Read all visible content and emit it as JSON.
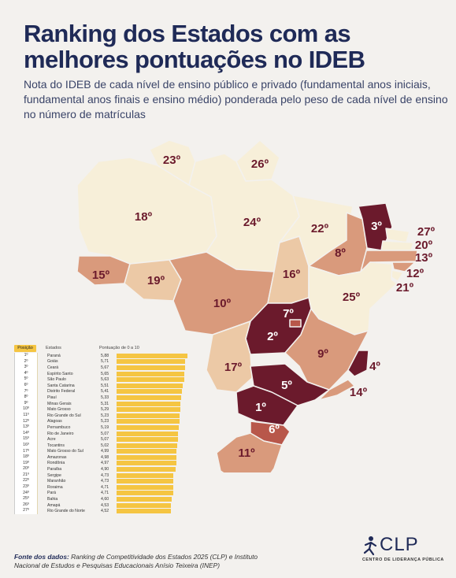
{
  "title": "Ranking dos Estados com as melhores pontuações no IDEB",
  "subtitle": "Nota do IDEB de cada nível de ensino público e privado (fundamental anos iniciais, fundamental anos finais e ensino médio) ponderada pelo peso de cada nível de ensino no número de matrículas",
  "colors": {
    "tier1": "#6b1a2c",
    "tier2": "#b8574a",
    "tier3": "#d99a7c",
    "tier4": "#ecc9a6",
    "tier5": "#f7efd9",
    "bar": "#f5c542",
    "title": "#1f2a57"
  },
  "map": {
    "states": [
      {
        "uf": "Amazonas",
        "rank": "18º",
        "tier": 5
      },
      {
        "uf": "Roraima",
        "rank": "23º",
        "tier": 5
      },
      {
        "uf": "Amapá",
        "rank": "26º",
        "tier": 5
      },
      {
        "uf": "Pará",
        "rank": "24º",
        "tier": 5
      },
      {
        "uf": "Acre",
        "rank": "15º",
        "tier": 3
      },
      {
        "uf": "Rondônia",
        "rank": "19º",
        "tier": 4
      },
      {
        "uf": "Mato Grosso",
        "rank": "10º",
        "tier": 3
      },
      {
        "uf": "Tocantins",
        "rank": "16º",
        "tier": 4
      },
      {
        "uf": "Maranhão",
        "rank": "22º",
        "tier": 5
      },
      {
        "uf": "Piauí",
        "rank": "8º",
        "tier": 3
      },
      {
        "uf": "Ceará",
        "rank": "3º",
        "tier": 1
      },
      {
        "uf": "Rio Grande do Norte",
        "rank": "27º",
        "tier": 5
      },
      {
        "uf": "Paraíba",
        "rank": "20º",
        "tier": 5
      },
      {
        "uf": "Pernambuco",
        "rank": "13º",
        "tier": 3
      },
      {
        "uf": "Alagoas",
        "rank": "12º",
        "tier": 3
      },
      {
        "uf": "Sergipe",
        "rank": "21º",
        "tier": 5
      },
      {
        "uf": "Bahia",
        "rank": "25º",
        "tier": 5
      },
      {
        "uf": "Goiás",
        "rank": "2º",
        "tier": 1
      },
      {
        "uf": "Distrito Federal",
        "rank": "7º",
        "tier": 2
      },
      {
        "uf": "Minas Gerais",
        "rank": "9º",
        "tier": 3
      },
      {
        "uf": "Espírito Santo",
        "rank": "4º",
        "tier": 1
      },
      {
        "uf": "Mato Grosso do Sul",
        "rank": "17º",
        "tier": 4
      },
      {
        "uf": "São Paulo",
        "rank": "5º",
        "tier": 1
      },
      {
        "uf": "Rio de Janeiro",
        "rank": "14º",
        "tier": 3
      },
      {
        "uf": "Paraná",
        "rank": "1º",
        "tier": 1
      },
      {
        "uf": "Santa Catarina",
        "rank": "6º",
        "tier": 2
      },
      {
        "uf": "Rio Grande do Sul",
        "rank": "11º",
        "tier": 3
      }
    ]
  },
  "table": {
    "header_pos": "Posição",
    "header_state": "Estados",
    "header_score": "Pontuação de 0 a 10",
    "max_score": 5.88,
    "rows": [
      {
        "pos": "1º",
        "state": "Paraná",
        "score": "5,88",
        "value": 5.88
      },
      {
        "pos": "2º",
        "state": "Goiás",
        "score": "5,71",
        "value": 5.71
      },
      {
        "pos": "3º",
        "state": "Ceará",
        "score": "5,67",
        "value": 5.67
      },
      {
        "pos": "4º",
        "state": "Espírito Santo",
        "score": "5,65",
        "value": 5.65
      },
      {
        "pos": "5º",
        "state": "São Paulo",
        "score": "5,63",
        "value": 5.63
      },
      {
        "pos": "6º",
        "state": "Santa Catarina",
        "score": "5,51",
        "value": 5.51
      },
      {
        "pos": "7º",
        "state": "Distrito Federal",
        "score": "5,41",
        "value": 5.41
      },
      {
        "pos": "8º",
        "state": "Piauí",
        "score": "5,33",
        "value": 5.33
      },
      {
        "pos": "9º",
        "state": "Minas Gerais",
        "score": "5,31",
        "value": 5.31
      },
      {
        "pos": "10º",
        "state": "Mato Grosso",
        "score": "5,29",
        "value": 5.29
      },
      {
        "pos": "11º",
        "state": "Rio Grande do Sul",
        "score": "5,23",
        "value": 5.23
      },
      {
        "pos": "12º",
        "state": "Alagoas",
        "score": "5,23",
        "value": 5.23
      },
      {
        "pos": "13º",
        "state": "Pernambuco",
        "score": "5,19",
        "value": 5.19
      },
      {
        "pos": "14º",
        "state": "Rio de Janeiro",
        "score": "5,07",
        "value": 5.07
      },
      {
        "pos": "15º",
        "state": "Acre",
        "score": "5,07",
        "value": 5.07
      },
      {
        "pos": "16º",
        "state": "Tocantins",
        "score": "5,02",
        "value": 5.02
      },
      {
        "pos": "17º",
        "state": "Mato Grosso do Sul",
        "score": "4,99",
        "value": 4.99
      },
      {
        "pos": "18º",
        "state": "Amazonas",
        "score": "4,98",
        "value": 4.98
      },
      {
        "pos": "19º",
        "state": "Rondônia",
        "score": "4,97",
        "value": 4.97
      },
      {
        "pos": "20º",
        "state": "Paraíba",
        "score": "4,90",
        "value": 4.9
      },
      {
        "pos": "21º",
        "state": "Sergipe",
        "score": "4,73",
        "value": 4.73
      },
      {
        "pos": "22º",
        "state": "Maranhão",
        "score": "4,73",
        "value": 4.73
      },
      {
        "pos": "23º",
        "state": "Roraima",
        "score": "4,71",
        "value": 4.71
      },
      {
        "pos": "24º",
        "state": "Pará",
        "score": "4,71",
        "value": 4.71
      },
      {
        "pos": "25º",
        "state": "Bahia",
        "score": "4,60",
        "value": 4.6
      },
      {
        "pos": "26º",
        "state": "Amapá",
        "score": "4,53",
        "value": 4.53
      },
      {
        "pos": "27º",
        "state": "Rio Grande do Norte",
        "score": "4,52",
        "value": 4.52
      }
    ]
  },
  "footer": {
    "label": "Fonte dos dados:",
    "text": "Ranking de Competitividade dos Estados 2025 (CLP) e Instituto Nacional de Estudos e Pesquisas Educacionais Anísio Teixeira (INEP)"
  },
  "logo": {
    "name": "CLP",
    "sub": "CENTRO DE LIDERANÇA PÚBLICA"
  }
}
